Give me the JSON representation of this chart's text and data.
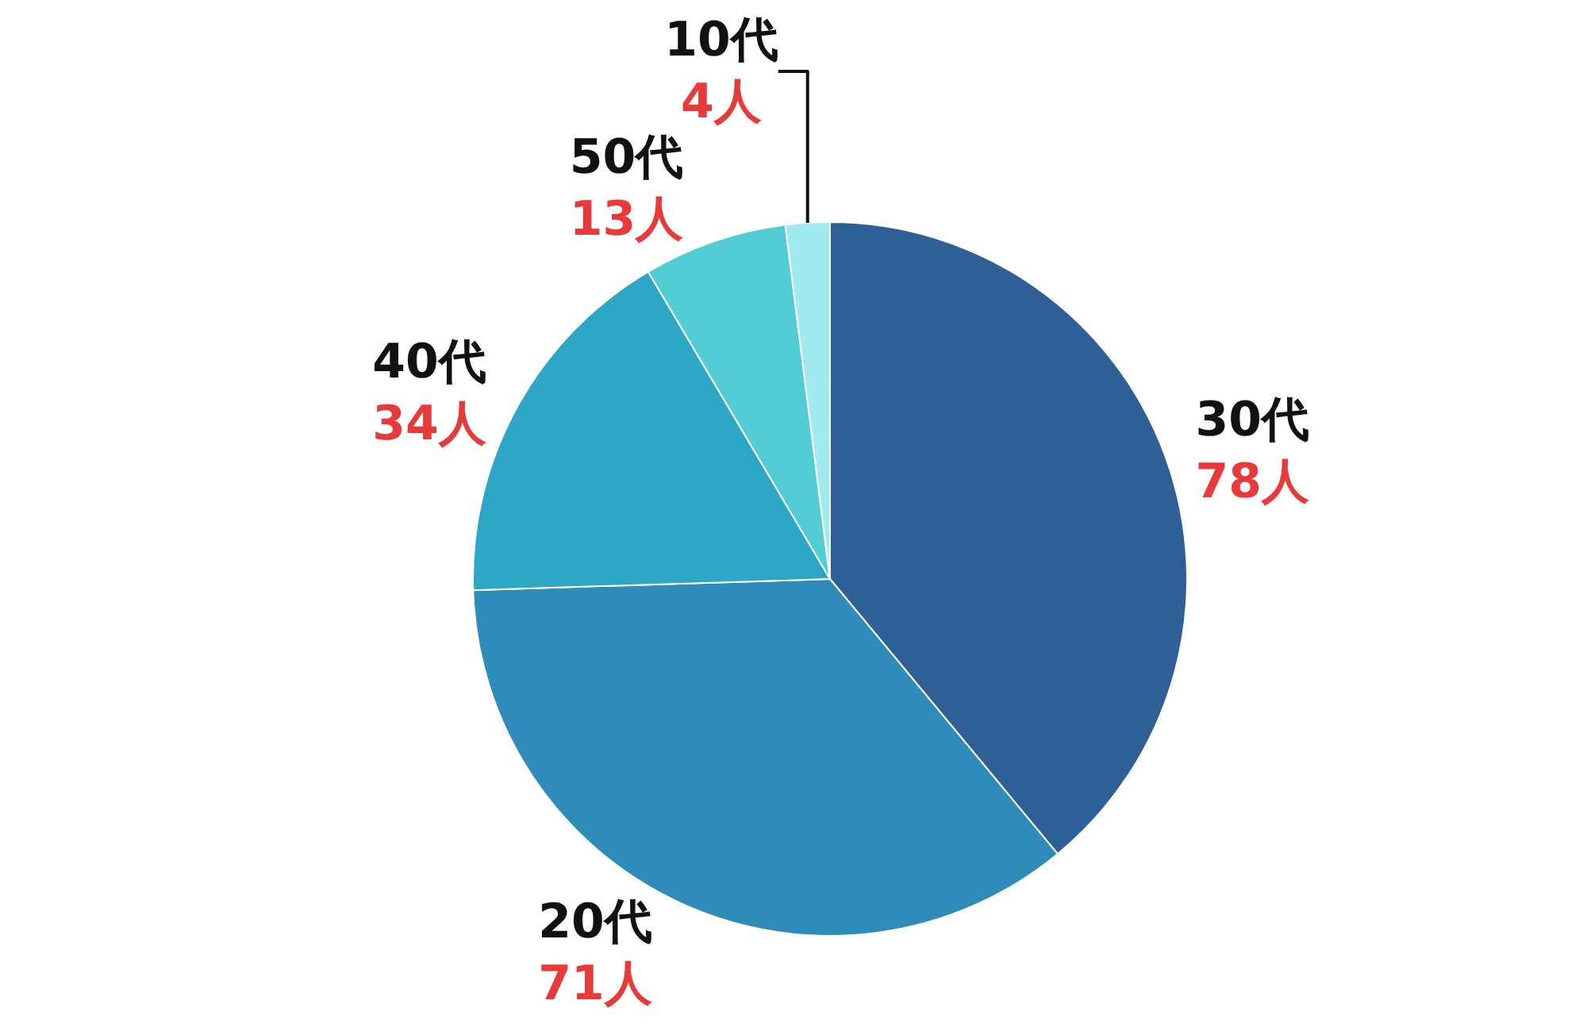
{
  "chart_data": {
    "type": "pie",
    "categories": [
      "30代",
      "20代",
      "40代",
      "50代",
      "10代"
    ],
    "values": [
      78,
      71,
      34,
      13,
      4
    ],
    "colors": [
      "#2e5f96",
      "#2e8bba",
      "#2ea6c6",
      "#52cdd6",
      "#a0eaf0"
    ],
    "value_labels": [
      "78人",
      "71人",
      "34人",
      "13人",
      "4人"
    ],
    "legend": false
  }
}
